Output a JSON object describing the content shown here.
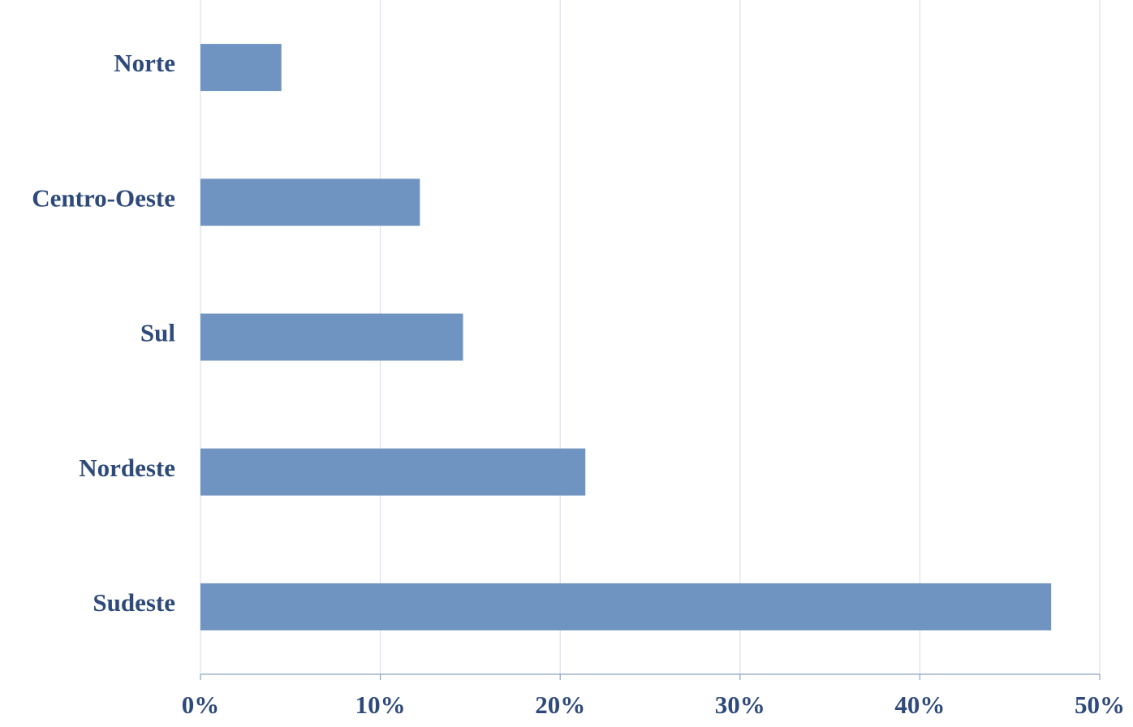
{
  "chart_data": {
    "type": "barh",
    "categories": [
      "Norte",
      "Centro-Oeste",
      "Sul",
      "Nordeste",
      "Sudeste"
    ],
    "values": [
      4.5,
      12.2,
      14.6,
      21.4,
      47.3
    ],
    "color": "#7094c1",
    "xlim": [
      0,
      50
    ],
    "xticks": [
      {
        "value": 0,
        "label": "0%"
      },
      {
        "value": 10,
        "label": "10%"
      },
      {
        "value": 20,
        "label": "20%"
      },
      {
        "value": 30,
        "label": "30%"
      },
      {
        "value": 40,
        "label": "40%"
      },
      {
        "value": 50,
        "label": "50%"
      }
    ],
    "grid": true
  }
}
